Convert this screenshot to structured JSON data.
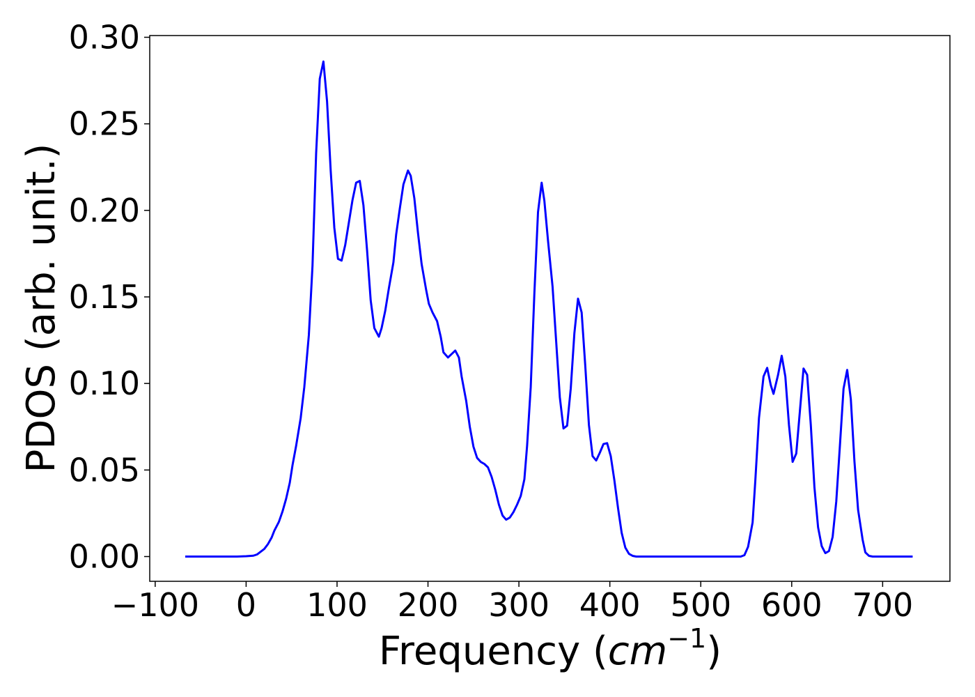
{
  "chart_data": {
    "type": "line",
    "xlabel": [
      "Frequency (",
      "cm",
      "−1",
      ")"
    ],
    "ylabel": "PDOS (arb. unit.)",
    "color": "#0000ff",
    "x": [
      -67,
      -10,
      0,
      8,
      12,
      15,
      20,
      24,
      28,
      31,
      36,
      40,
      44,
      48,
      51,
      55,
      60,
      64,
      69,
      73,
      77,
      81,
      85,
      89,
      93,
      97,
      101,
      105,
      109,
      113,
      117,
      121,
      125,
      129,
      133,
      137,
      141,
      146,
      149,
      153,
      157,
      162,
      165,
      169,
      173,
      178,
      181,
      185,
      189,
      193,
      198,
      201,
      205,
      210,
      214,
      217,
      222,
      226,
      230,
      234,
      237,
      242,
      246,
      250,
      254,
      258,
      262,
      266,
      270,
      274,
      278,
      282,
      286,
      290,
      294,
      298,
      302,
      306,
      309,
      313,
      317,
      321,
      325,
      328,
      332,
      337,
      341,
      345,
      349,
      353,
      357,
      361,
      365,
      369,
      373,
      377,
      381,
      385,
      389,
      393,
      397,
      401,
      405,
      409,
      413,
      417,
      421,
      425,
      429,
      544,
      548,
      552,
      557,
      560,
      564,
      569,
      573,
      577,
      580,
      585,
      589,
      593,
      597,
      601,
      605,
      609,
      613,
      617,
      621,
      625,
      629,
      633,
      637,
      641,
      645,
      649,
      653,
      657,
      661,
      665,
      669,
      673,
      678,
      681,
      685,
      689,
      733
    ],
    "values": [
      0,
      0,
      0.0002,
      0.0005,
      0.0012,
      0.0024,
      0.0044,
      0.0072,
      0.0109,
      0.0149,
      0.02,
      0.026,
      0.0334,
      0.0426,
      0.0527,
      0.064,
      0.08,
      0.098,
      0.128,
      0.168,
      0.233,
      0.276,
      0.286,
      0.263,
      0.223,
      0.19,
      0.172,
      0.171,
      0.18,
      0.193,
      0.206,
      0.216,
      0.217,
      0.203,
      0.177,
      0.148,
      0.132,
      0.127,
      0.132,
      0.142,
      0.155,
      0.17,
      0.186,
      0.201,
      0.215,
      0.223,
      0.22,
      0.207,
      0.187,
      0.169,
      0.154,
      0.146,
      0.141,
      0.136,
      0.127,
      0.118,
      0.115,
      0.117,
      0.119,
      0.115,
      0.104,
      0.09,
      0.075,
      0.0635,
      0.057,
      0.0547,
      0.0535,
      0.0515,
      0.046,
      0.0386,
      0.03,
      0.0237,
      0.0213,
      0.0225,
      0.0257,
      0.03,
      0.035,
      0.0446,
      0.064,
      0.098,
      0.152,
      0.199,
      0.216,
      0.2055,
      0.1825,
      0.156,
      0.124,
      0.092,
      0.074,
      0.0756,
      0.097,
      0.129,
      0.149,
      0.141,
      0.11,
      0.076,
      0.058,
      0.0555,
      0.06,
      0.065,
      0.0655,
      0.058,
      0.044,
      0.028,
      0.0137,
      0.0052,
      0.0016,
      0.0004,
      0,
      0,
      0.0008,
      0.0056,
      0.0197,
      0.044,
      0.08,
      0.104,
      0.109,
      0.099,
      0.094,
      0.105,
      0.116,
      0.104,
      0.076,
      0.0547,
      0.0595,
      0.084,
      0.1086,
      0.105,
      0.076,
      0.04,
      0.0169,
      0.006,
      0.002,
      0.0032,
      0.0113,
      0.0318,
      0.064,
      0.097,
      0.1078,
      0.091,
      0.055,
      0.027,
      0.0097,
      0.0024,
      0.0004,
      0,
      0
    ],
    "xlim": [
      -106,
      774
    ],
    "ylim": [
      -0.0143,
      0.301
    ],
    "xticks": [
      {
        "value": -100,
        "label": "−100"
      },
      0,
      100,
      200,
      300,
      400,
      500,
      600,
      700
    ],
    "yticks": [
      {
        "value": 0,
        "label": "0.00"
      },
      {
        "value": 0.05,
        "label": "0.05"
      },
      {
        "value": 0.1,
        "label": "0.10"
      },
      {
        "value": 0.15,
        "label": "0.15"
      },
      {
        "value": 0.2,
        "label": "0.20"
      },
      {
        "value": 0.25,
        "label": "0.25"
      },
      {
        "value": 0.3,
        "label": "0.30"
      }
    ],
    "grid": false
  }
}
